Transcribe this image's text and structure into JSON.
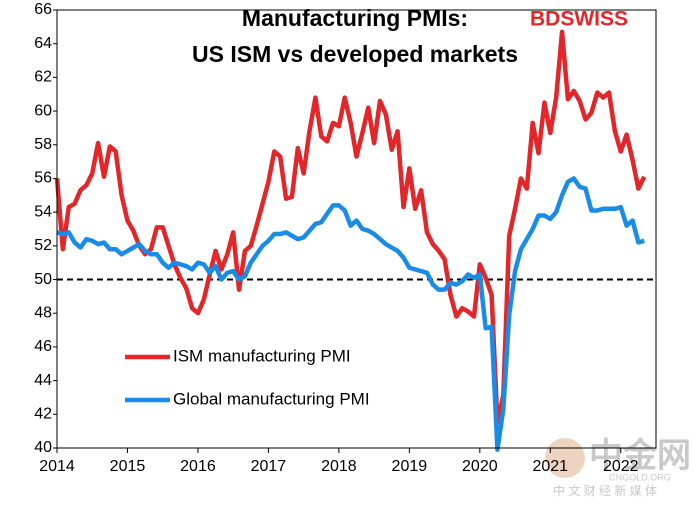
{
  "chart_data": {
    "type": "line",
    "title_lines": [
      "Manufacturing PMIs:",
      "US ISM vs developed markets"
    ],
    "logo": "BDSWISS",
    "watermark": [
      "中金网",
      "CNGOLD.ORG",
      "中 文 财 经 新 媒 体"
    ],
    "x": [
      2014,
      2014.083,
      2014.167,
      2014.25,
      2014.333,
      2014.417,
      2014.5,
      2014.583,
      2014.667,
      2014.75,
      2014.833,
      2014.917,
      2015,
      2015.083,
      2015.167,
      2015.25,
      2015.333,
      2015.417,
      2015.5,
      2015.583,
      2015.667,
      2015.75,
      2015.833,
      2015.917,
      2016,
      2016.083,
      2016.167,
      2016.25,
      2016.333,
      2016.417,
      2016.5,
      2016.583,
      2016.667,
      2016.75,
      2016.833,
      2016.917,
      2017,
      2017.083,
      2017.167,
      2017.25,
      2017.333,
      2017.417,
      2017.5,
      2017.583,
      2017.667,
      2017.75,
      2017.833,
      2017.917,
      2018,
      2018.083,
      2018.167,
      2018.25,
      2018.333,
      2018.417,
      2018.5,
      2018.583,
      2018.667,
      2018.75,
      2018.833,
      2018.917,
      2019,
      2019.083,
      2019.167,
      2019.25,
      2019.333,
      2019.417,
      2019.5,
      2019.583,
      2019.667,
      2019.75,
      2019.833,
      2019.917,
      2020,
      2020.083,
      2020.167,
      2020.25,
      2020.333,
      2020.417,
      2020.5,
      2020.583,
      2020.667,
      2020.75,
      2020.833,
      2020.917,
      2021,
      2021.083,
      2021.167,
      2021.25,
      2021.333,
      2021.417,
      2021.5,
      2021.583,
      2021.667,
      2021.75,
      2021.833,
      2021.917,
      2022,
      2022.083,
      2022.167,
      2022.25,
      2022.333
    ],
    "series": [
      {
        "name": "ISM manufacturing PMI",
        "color": "#e3262a",
        "values": [
          56.0,
          51.8,
          54.3,
          54.5,
          55.3,
          55.6,
          56.3,
          58.1,
          56.1,
          57.9,
          57.6,
          55.0,
          53.5,
          52.9,
          52.0,
          51.5,
          51.8,
          53.1,
          53.1,
          52.0,
          50.9,
          50.1,
          49.5,
          48.3,
          48.0,
          48.8,
          50.3,
          51.7,
          50.6,
          51.5,
          52.8,
          49.4,
          51.7,
          52.0,
          53.2,
          54.5,
          55.8,
          57.6,
          57.3,
          54.8,
          54.9,
          57.8,
          56.3,
          58.8,
          60.8,
          58.5,
          58.2,
          59.3,
          59.1,
          60.8,
          59.3,
          57.3,
          58.7,
          60.2,
          58.1,
          60.6,
          59.8,
          57.7,
          58.8,
          54.3,
          56.6,
          54.2,
          55.3,
          52.8,
          52.1,
          51.7,
          51.2,
          49.1,
          47.8,
          48.3,
          48.1,
          47.8,
          50.9,
          50.1,
          49.1,
          41.5,
          43.1,
          52.6,
          54.2,
          56.0,
          55.4,
          59.3,
          57.5,
          60.5,
          58.7,
          60.8,
          64.7,
          60.7,
          61.2,
          60.6,
          59.5,
          59.9,
          61.1,
          60.8,
          61.1,
          58.8,
          57.6,
          58.6,
          57.1,
          55.4,
          56.1
        ]
      },
      {
        "name": "Global manufacturing PMI",
        "color": "#1a8ce8",
        "values": [
          52.8,
          52.7,
          52.8,
          52.2,
          51.9,
          52.4,
          52.3,
          52.1,
          52.2,
          51.8,
          51.8,
          51.5,
          51.7,
          51.9,
          52.1,
          51.7,
          51.5,
          51.5,
          51.0,
          50.7,
          51.0,
          50.9,
          50.8,
          50.6,
          51.0,
          50.9,
          50.4,
          50.8,
          50.0,
          50.4,
          50.5,
          50.0,
          50.2,
          51.0,
          51.5,
          52.0,
          52.3,
          52.7,
          52.7,
          52.8,
          52.6,
          52.4,
          52.5,
          52.9,
          53.3,
          53.4,
          53.9,
          54.4,
          54.4,
          54.1,
          53.2,
          53.5,
          53.0,
          52.9,
          52.7,
          52.4,
          52.1,
          51.9,
          51.7,
          51.3,
          50.7,
          50.6,
          50.5,
          50.4,
          49.7,
          49.4,
          49.4,
          49.8,
          49.7,
          49.9,
          50.3,
          50.1,
          50.3,
          47.1,
          47.2,
          39.9,
          42.3,
          47.9,
          50.5,
          51.8,
          52.4,
          53.0,
          53.8,
          53.8,
          53.6,
          54.0,
          55.0,
          55.8,
          56.0,
          55.5,
          55.4,
          54.1,
          54.1,
          54.2,
          54.2,
          54.2,
          54.3,
          53.2,
          53.5,
          52.2,
          52.3
        ]
      }
    ],
    "reference_line": 50,
    "xlim": [
      2014,
      2022.5
    ],
    "xticks": [
      2014,
      2015,
      2016,
      2017,
      2018,
      2019,
      2020,
      2021,
      2022
    ],
    "ylim": [
      40,
      66
    ],
    "yticks": [
      40,
      42,
      44,
      46,
      48,
      50,
      52,
      54,
      56,
      58,
      60,
      62,
      64,
      66
    ],
    "grid": false,
    "legend": "lower left"
  }
}
